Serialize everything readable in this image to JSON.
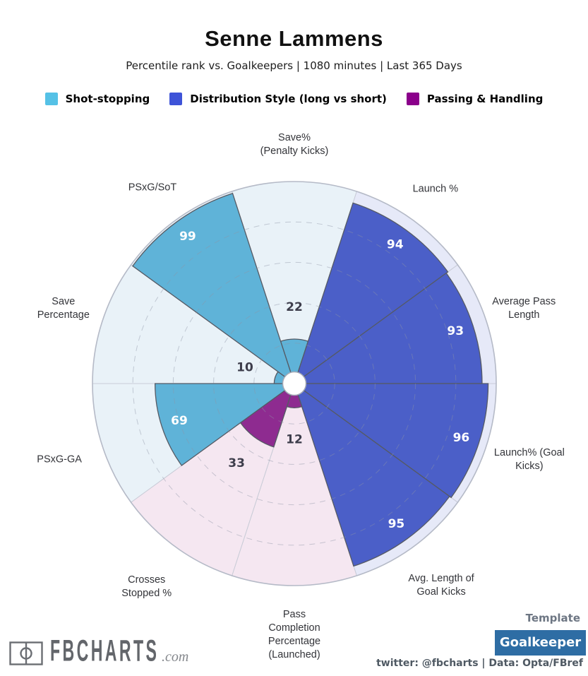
{
  "header": {
    "title": "Senne Lammens",
    "subtitle": "Percentile rank vs. Goalkeepers | 1080 minutes | Last 365 Days"
  },
  "legend": {
    "items": [
      {
        "label": "Shot-stopping",
        "color": "#55c1e6"
      },
      {
        "label": "Distribution Style (long vs short)",
        "color": "#3e53d8"
      },
      {
        "label": "Passing & Handling",
        "color": "#8b008b"
      }
    ]
  },
  "chart_data": {
    "type": "pie",
    "variant": "pizza-percentile-radar",
    "title": "Senne Lammens",
    "subtitle": "Percentile rank vs. Goalkeepers | 1080 minutes | Last 365 Days",
    "max": 100,
    "ring_ticks": [
      20,
      40,
      60,
      80,
      100
    ],
    "start": "top",
    "direction": "clockwise",
    "grid": "dashed-concentric",
    "groups": {
      "shot_stopping": {
        "label": "Shot-stopping",
        "fill": "#5fb3d8",
        "bg": "#e9f2f8"
      },
      "distribution": {
        "label": "Distribution Style (long vs short)",
        "fill": "#4b5fc8",
        "bg": "#e6e9f8"
      },
      "passing": {
        "label": "Passing & Handling",
        "fill": "#8e2b90",
        "bg": "#f5e7f1"
      }
    },
    "categories": [
      "Save% (Penalty Kicks)",
      "Launch %",
      "Average Pass Length",
      "Launch% (Goal Kicks)",
      "Avg. Length of Goal Kicks",
      "Pass Completion Percentage (Launched)",
      "Crosses Stopped %",
      "PSxG-GA",
      "Save Percentage",
      "PSxG/SoT"
    ],
    "values": [
      22,
      94,
      93,
      96,
      95,
      12,
      33,
      69,
      10,
      99
    ],
    "slices": [
      {
        "label": "Save% (Penalty Kicks)",
        "lines": [
          "Save%",
          "(Penalty Kicks)"
        ],
        "value": 22,
        "group": "shot_stopping"
      },
      {
        "label": "Launch %",
        "lines": [
          "Launch %"
        ],
        "value": 94,
        "group": "distribution"
      },
      {
        "label": "Average Pass Length",
        "lines": [
          "Average Pass",
          "Length"
        ],
        "value": 93,
        "group": "distribution"
      },
      {
        "label": "Launch% (Goal Kicks)",
        "lines": [
          "Launch% (Goal",
          "Kicks)"
        ],
        "value": 96,
        "group": "distribution"
      },
      {
        "label": "Avg. Length of Goal Kicks",
        "lines": [
          "Avg. Length of",
          "Goal Kicks"
        ],
        "value": 95,
        "group": "distribution"
      },
      {
        "label": "Pass Completion Percentage (Launched)",
        "lines": [
          "Pass",
          "Completion",
          "Percentage",
          "(Launched)"
        ],
        "value": 12,
        "group": "passing"
      },
      {
        "label": "Crosses Stopped %",
        "lines": [
          "Crosses",
          "Stopped %"
        ],
        "value": 33,
        "group": "passing"
      },
      {
        "label": "PSxG-GA",
        "lines": [
          "PSxG-GA"
        ],
        "value": 69,
        "group": "shot_stopping"
      },
      {
        "label": "Save Percentage",
        "lines": [
          "Save",
          "Percentage"
        ],
        "value": 10,
        "group": "shot_stopping"
      },
      {
        "label": "PSxG/SoT",
        "lines": [
          "PSxG/SoT"
        ],
        "value": 99,
        "group": "shot_stopping"
      }
    ],
    "value_label_colors": {
      "inside": "#ffffff",
      "outside": "#3d3d4b"
    }
  },
  "footer": {
    "logo_text": "FBCHARTS",
    "logo_suffix": ".com",
    "template_label": "Template",
    "template_value": "Goalkeeper",
    "credits": "twitter: @fbcharts | Data: Opta/FBref"
  }
}
